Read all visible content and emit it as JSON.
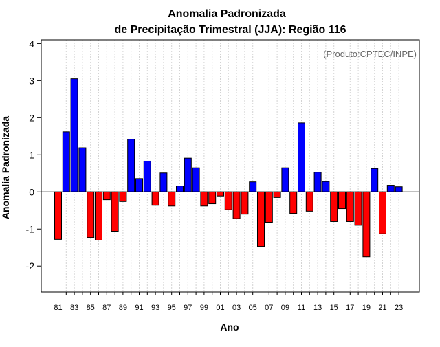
{
  "chart_data": {
    "type": "bar",
    "title_line1": "Anomalia Padronizada",
    "title_line2": "de Precipitação Trimestral (JJA): Região 116",
    "xlabel": "Ano",
    "ylabel": "Anomalia Padronizada",
    "annotation": "(Produto:CPTEC/INPE)",
    "ylim": [
      -2.7,
      4.1
    ],
    "yticks": [
      -2,
      -1,
      0,
      1,
      2,
      3,
      4
    ],
    "colors": {
      "positive": "#0000ff",
      "negative": "#ff0000"
    },
    "categories": [
      "81",
      "82",
      "83",
      "84",
      "85",
      "86",
      "87",
      "88",
      "89",
      "90",
      "91",
      "92",
      "93",
      "94",
      "95",
      "96",
      "97",
      "98",
      "99",
      "00",
      "01",
      "02",
      "03",
      "04",
      "05",
      "06",
      "07",
      "08",
      "09",
      "10",
      "11",
      "12",
      "13",
      "14",
      "15",
      "16",
      "17",
      "18",
      "19",
      "20",
      "21",
      "22",
      "23"
    ],
    "x_tick_labels": [
      "81",
      "83",
      "85",
      "87",
      "89",
      "91",
      "93",
      "95",
      "97",
      "99",
      "01",
      "03",
      "05",
      "07",
      "09",
      "11",
      "13",
      "15",
      "17",
      "19",
      "21",
      "23"
    ],
    "values": [
      -1.28,
      1.62,
      3.05,
      1.19,
      -1.23,
      -1.3,
      -0.21,
      -1.06,
      -0.26,
      1.42,
      0.36,
      0.83,
      -0.36,
      0.51,
      -0.38,
      0.16,
      0.91,
      0.65,
      -0.38,
      -0.32,
      -0.11,
      -0.48,
      -0.72,
      -0.6,
      0.27,
      -1.47,
      -0.82,
      -0.15,
      0.65,
      -0.58,
      1.86,
      -0.52,
      0.53,
      0.28,
      -0.8,
      -0.45,
      -0.8,
      -0.9,
      -1.75,
      0.63,
      -1.13,
      0.18,
      0.14
    ]
  }
}
